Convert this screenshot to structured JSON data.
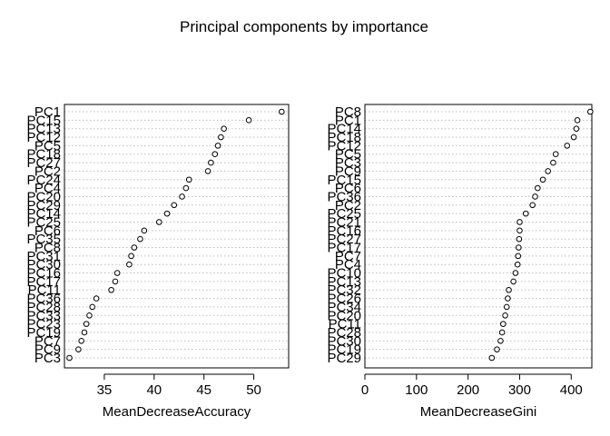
{
  "title": "Principal  components by importance",
  "chart_data": [
    {
      "type": "scatter",
      "subtype": "dotchart",
      "xlabel": "MeanDecreaseAccuracy",
      "ylabel": "",
      "xlim": [
        31,
        53.5
      ],
      "xticks": [
        35,
        40,
        45,
        50
      ],
      "grid": "dotted horizontal",
      "labels": [
        "PC1",
        "PC15",
        "PC13",
        "PC12",
        "PC5",
        "PC18",
        "PC27",
        "PC2",
        "PC24",
        "PC4",
        "PC20",
        "PC29",
        "PC14",
        "PC25",
        "PC6",
        "PC35",
        "PC8",
        "PC31",
        "PC30",
        "PC16",
        "PC17",
        "PC11",
        "PC36",
        "PC28",
        "PC33",
        "PC23",
        "PC19",
        "PC7",
        "PC9",
        "PC3"
      ],
      "values": [
        52.8,
        49.5,
        47.0,
        46.7,
        46.4,
        46.1,
        45.7,
        45.4,
        43.5,
        43.2,
        42.8,
        42.0,
        41.3,
        40.5,
        39.0,
        38.6,
        38.0,
        37.7,
        37.5,
        36.3,
        36.1,
        35.7,
        34.2,
        33.8,
        33.5,
        33.2,
        33.0,
        32.7,
        32.4,
        31.5
      ]
    },
    {
      "type": "scatter",
      "subtype": "dotchart",
      "xlabel": "MeanDecreaseGini",
      "ylabel": "",
      "xlim": [
        0,
        440
      ],
      "xticks": [
        0,
        100,
        200,
        300,
        400
      ],
      "grid": "dotted horizontal",
      "labels": [
        "PC8",
        "PC1",
        "PC14",
        "PC18",
        "PC12",
        "PC5",
        "PC3",
        "PC9",
        "PC15",
        "PC6",
        "PC36",
        "PC2",
        "PC25",
        "PC21",
        "PC16",
        "PC27",
        "PC17",
        "PC7",
        "PC4",
        "PC10",
        "PC13",
        "PC32",
        "PC26",
        "PC34",
        "PC20",
        "PC11",
        "PC28",
        "PC30",
        "PC19",
        "PC29"
      ],
      "values": [
        437,
        412,
        410,
        405,
        392,
        370,
        365,
        355,
        345,
        335,
        330,
        325,
        312,
        300,
        300,
        299,
        298,
        297,
        296,
        292,
        288,
        279,
        277,
        275,
        272,
        268,
        266,
        263,
        256,
        246
      ]
    }
  ]
}
